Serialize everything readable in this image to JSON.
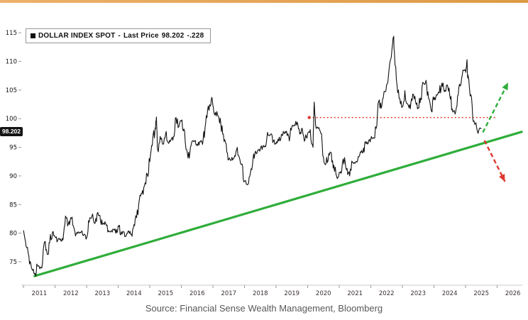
{
  "page": {
    "accent_color": "#dd9a44",
    "background": "#ffffff"
  },
  "legend": {
    "series_label": "DOLLAR INDEX SPOT",
    "dash": "-",
    "last_price_label": "Last Price",
    "last_price": "98.202",
    "change": "-.228"
  },
  "price_badge": {
    "value": "98.202"
  },
  "source": {
    "text": "Source: Financial Sense Wealth Management, Bloomberg"
  },
  "chart_data": {
    "type": "line",
    "series_name": "DOLLAR INDEX SPOT",
    "last_price": 98.202,
    "change": -0.228,
    "xlim": [
      2010.93,
      2026.8
    ],
    "ylim": [
      70.9,
      118.5
    ],
    "yticks": [
      75,
      80,
      85,
      90,
      95,
      100,
      105,
      110,
      115
    ],
    "xticks": [
      2011,
      2012,
      2013,
      2014,
      2015,
      2016,
      2017,
      2018,
      2019,
      2020,
      2021,
      2022,
      2023,
      2024,
      2025,
      2026
    ],
    "grid": false,
    "legend_position": "top-left",
    "colors": {
      "series": "#111111",
      "green": "#2fad3a",
      "red": "#dd392e"
    },
    "points": [
      [
        2011.0,
        80.5
      ],
      [
        2011.08,
        77.7
      ],
      [
        2011.17,
        76.0
      ],
      [
        2011.25,
        74.0
      ],
      [
        2011.33,
        73.0
      ],
      [
        2011.38,
        72.7
      ],
      [
        2011.42,
        74.6
      ],
      [
        2011.5,
        74.1
      ],
      [
        2011.58,
        73.9
      ],
      [
        2011.67,
        78.5
      ],
      [
        2011.75,
        76.3
      ],
      [
        2011.83,
        78.3
      ],
      [
        2011.92,
        80.2
      ],
      [
        2012.0,
        79.3
      ],
      [
        2012.08,
        78.7
      ],
      [
        2012.17,
        79.0
      ],
      [
        2012.25,
        78.8
      ],
      [
        2012.33,
        83.0
      ],
      [
        2012.42,
        81.6
      ],
      [
        2012.5,
        82.7
      ],
      [
        2012.58,
        81.2
      ],
      [
        2012.67,
        79.9
      ],
      [
        2012.75,
        80.1
      ],
      [
        2012.83,
        80.2
      ],
      [
        2012.92,
        79.8
      ],
      [
        2013.0,
        79.2
      ],
      [
        2013.08,
        81.9
      ],
      [
        2013.17,
        83.0
      ],
      [
        2013.25,
        81.7
      ],
      [
        2013.33,
        83.4
      ],
      [
        2013.42,
        83.1
      ],
      [
        2013.5,
        81.5
      ],
      [
        2013.58,
        82.0
      ],
      [
        2013.67,
        80.2
      ],
      [
        2013.75,
        80.2
      ],
      [
        2013.83,
        80.7
      ],
      [
        2013.92,
        80.0
      ],
      [
        2014.0,
        81.3
      ],
      [
        2014.08,
        79.7
      ],
      [
        2014.17,
        80.2
      ],
      [
        2014.25,
        79.5
      ],
      [
        2014.33,
        80.4
      ],
      [
        2014.42,
        79.8
      ],
      [
        2014.5,
        81.5
      ],
      [
        2014.58,
        82.7
      ],
      [
        2014.67,
        85.9
      ],
      [
        2014.75,
        86.9
      ],
      [
        2014.83,
        88.3
      ],
      [
        2014.92,
        90.3
      ],
      [
        2015.0,
        92.5
      ],
      [
        2015.08,
        95.3
      ],
      [
        2015.17,
        98.4
      ],
      [
        2015.21,
        100.3
      ],
      [
        2015.25,
        94.6
      ],
      [
        2015.33,
        96.9
      ],
      [
        2015.42,
        95.5
      ],
      [
        2015.5,
        97.3
      ],
      [
        2015.58,
        95.8
      ],
      [
        2015.67,
        96.3
      ],
      [
        2015.75,
        96.9
      ],
      [
        2015.83,
        100.2
      ],
      [
        2015.92,
        98.6
      ],
      [
        2016.0,
        99.6
      ],
      [
        2016.08,
        98.2
      ],
      [
        2016.17,
        94.6
      ],
      [
        2016.25,
        93.1
      ],
      [
        2016.33,
        95.9
      ],
      [
        2016.42,
        96.1
      ],
      [
        2016.5,
        95.5
      ],
      [
        2016.58,
        96.0
      ],
      [
        2016.67,
        95.5
      ],
      [
        2016.75,
        98.4
      ],
      [
        2016.83,
        101.5
      ],
      [
        2016.92,
        102.2
      ],
      [
        2016.98,
        103.3
      ],
      [
        2017.04,
        100.9
      ],
      [
        2017.08,
        101.1
      ],
      [
        2017.17,
        100.4
      ],
      [
        2017.25,
        99.0
      ],
      [
        2017.33,
        97.3
      ],
      [
        2017.42,
        95.6
      ],
      [
        2017.5,
        92.9
      ],
      [
        2017.58,
        92.7
      ],
      [
        2017.67,
        93.1
      ],
      [
        2017.75,
        94.6
      ],
      [
        2017.83,
        93.3
      ],
      [
        2017.92,
        92.1
      ],
      [
        2018.0,
        89.1
      ],
      [
        2018.12,
        88.6
      ],
      [
        2018.17,
        90.0
      ],
      [
        2018.25,
        91.8
      ],
      [
        2018.33,
        94.0
      ],
      [
        2018.42,
        94.5
      ],
      [
        2018.5,
        94.6
      ],
      [
        2018.58,
        95.1
      ],
      [
        2018.67,
        95.1
      ],
      [
        2018.75,
        97.1
      ],
      [
        2018.83,
        97.3
      ],
      [
        2018.92,
        96.2
      ],
      [
        2019.0,
        95.6
      ],
      [
        2019.08,
        96.1
      ],
      [
        2019.17,
        97.3
      ],
      [
        2019.25,
        97.5
      ],
      [
        2019.33,
        97.8
      ],
      [
        2019.42,
        96.1
      ],
      [
        2019.5,
        98.5
      ],
      [
        2019.58,
        98.9
      ],
      [
        2019.67,
        99.4
      ],
      [
        2019.75,
        97.3
      ],
      [
        2019.83,
        98.3
      ],
      [
        2019.92,
        96.4
      ],
      [
        2020.0,
        97.4
      ],
      [
        2020.08,
        98.1
      ],
      [
        2020.17,
        95.0
      ],
      [
        2020.21,
        102.9
      ],
      [
        2020.25,
        99.0
      ],
      [
        2020.33,
        98.3
      ],
      [
        2020.42,
        97.4
      ],
      [
        2020.5,
        93.3
      ],
      [
        2020.58,
        92.1
      ],
      [
        2020.67,
        93.9
      ],
      [
        2020.75,
        94.0
      ],
      [
        2020.83,
        91.9
      ],
      [
        2020.92,
        89.9
      ],
      [
        2021.0,
        90.6
      ],
      [
        2021.08,
        90.9
      ],
      [
        2021.17,
        93.2
      ],
      [
        2021.25,
        91.3
      ],
      [
        2021.33,
        90.0
      ],
      [
        2021.42,
        92.4
      ],
      [
        2021.5,
        92.2
      ],
      [
        2021.58,
        92.6
      ],
      [
        2021.67,
        94.2
      ],
      [
        2021.75,
        94.1
      ],
      [
        2021.83,
        96.0
      ],
      [
        2021.92,
        95.7
      ],
      [
        2022.0,
        96.5
      ],
      [
        2022.08,
        96.7
      ],
      [
        2022.17,
        98.3
      ],
      [
        2022.25,
        103.0
      ],
      [
        2022.33,
        101.8
      ],
      [
        2022.42,
        104.7
      ],
      [
        2022.5,
        105.9
      ],
      [
        2022.58,
        108.7
      ],
      [
        2022.67,
        112.1
      ],
      [
        2022.72,
        114.1
      ],
      [
        2022.75,
        111.5
      ],
      [
        2022.83,
        105.9
      ],
      [
        2022.92,
        103.5
      ],
      [
        2023.0,
        102.1
      ],
      [
        2023.08,
        104.9
      ],
      [
        2023.17,
        102.5
      ],
      [
        2023.25,
        101.7
      ],
      [
        2023.33,
        104.3
      ],
      [
        2023.42,
        102.9
      ],
      [
        2023.5,
        101.9
      ],
      [
        2023.58,
        103.6
      ],
      [
        2023.67,
        106.2
      ],
      [
        2023.75,
        106.7
      ],
      [
        2023.83,
        103.5
      ],
      [
        2023.92,
        101.3
      ],
      [
        2024.0,
        103.3
      ],
      [
        2024.08,
        104.2
      ],
      [
        2024.17,
        104.5
      ],
      [
        2024.25,
        106.2
      ],
      [
        2024.33,
        104.7
      ],
      [
        2024.42,
        105.9
      ],
      [
        2024.5,
        104.1
      ],
      [
        2024.58,
        101.7
      ],
      [
        2024.67,
        100.8
      ],
      [
        2024.75,
        104.0
      ],
      [
        2024.83,
        105.7
      ],
      [
        2024.92,
        108.5
      ],
      [
        2025.0,
        108.4
      ],
      [
        2025.04,
        109.9
      ],
      [
        2025.08,
        107.6
      ],
      [
        2025.17,
        104.2
      ],
      [
        2025.25,
        99.5
      ],
      [
        2025.33,
        99.3
      ],
      [
        2025.42,
        97.9
      ],
      [
        2025.5,
        98.202
      ]
    ],
    "annotations": {
      "trendline": {
        "type": "support",
        "from": [
          2011.35,
          72.5
        ],
        "to": [
          2026.78,
          97.7
        ],
        "color": "green",
        "style": "solid"
      },
      "resistance_line": {
        "level": 100.2,
        "from": 2020.05,
        "to": 2025.95,
        "color": "red",
        "style": "dotted"
      },
      "arrows": [
        {
          "name": "bullish-breakout-arrow",
          "from": [
            2025.55,
            97.6
          ],
          "to": [
            2026.35,
            106.3
          ],
          "color": "green",
          "style": "dashed"
        },
        {
          "name": "bearish-breakdown-arrow",
          "from": [
            2025.6,
            96.2
          ],
          "to": [
            2026.25,
            89.0
          ],
          "color": "red",
          "style": "dashed"
        }
      ]
    }
  }
}
